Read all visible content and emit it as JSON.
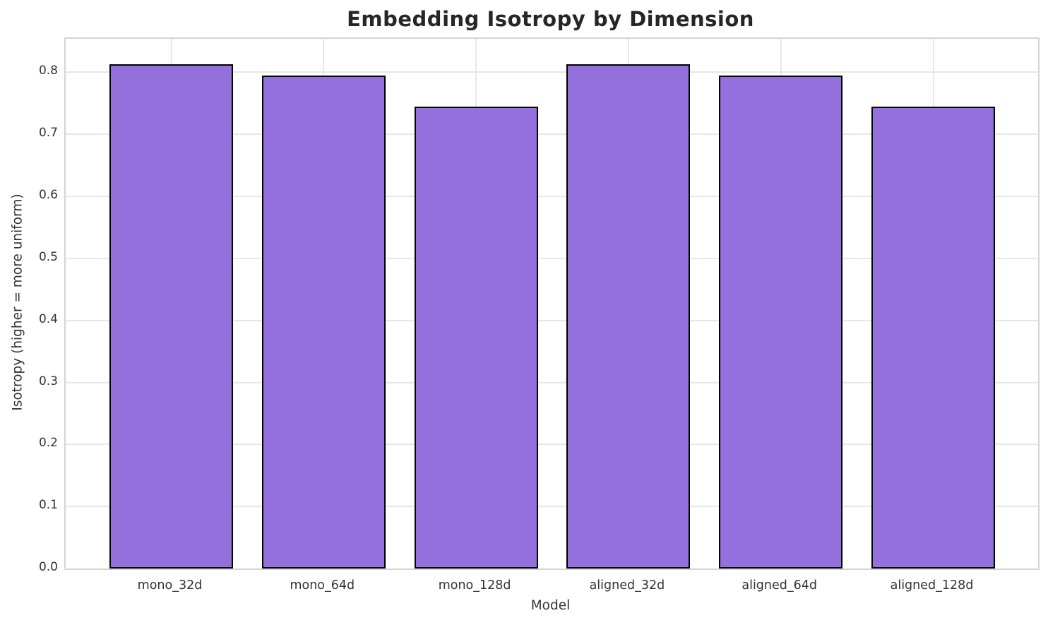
{
  "chart_data": {
    "type": "bar",
    "title": "Embedding Isotropy by Dimension",
    "xlabel": "Model",
    "ylabel": "Isotropy (higher = more uniform)",
    "categories": [
      "mono_32d",
      "mono_64d",
      "mono_128d",
      "aligned_32d",
      "aligned_64d",
      "aligned_128d"
    ],
    "values": [
      0.813,
      0.795,
      0.745,
      0.813,
      0.795,
      0.745
    ],
    "ylim": [
      0,
      0.854
    ],
    "yticks": [
      0.0,
      0.1,
      0.2,
      0.3,
      0.4,
      0.5,
      0.6,
      0.7,
      0.8
    ],
    "ytick_labels": [
      "0.0",
      "0.1",
      "0.2",
      "0.3",
      "0.4",
      "0.5",
      "0.6",
      "0.7",
      "0.8"
    ],
    "grid": true,
    "legend": "none",
    "colors": {
      "bar_fill": "#9370DB",
      "bar_edge": "#000000",
      "grid_color": "#e7e7e7",
      "spine_color": "#d4d4d4",
      "background": "#ffffff",
      "title_text": "#262626",
      "tick_text": "#333333"
    }
  }
}
